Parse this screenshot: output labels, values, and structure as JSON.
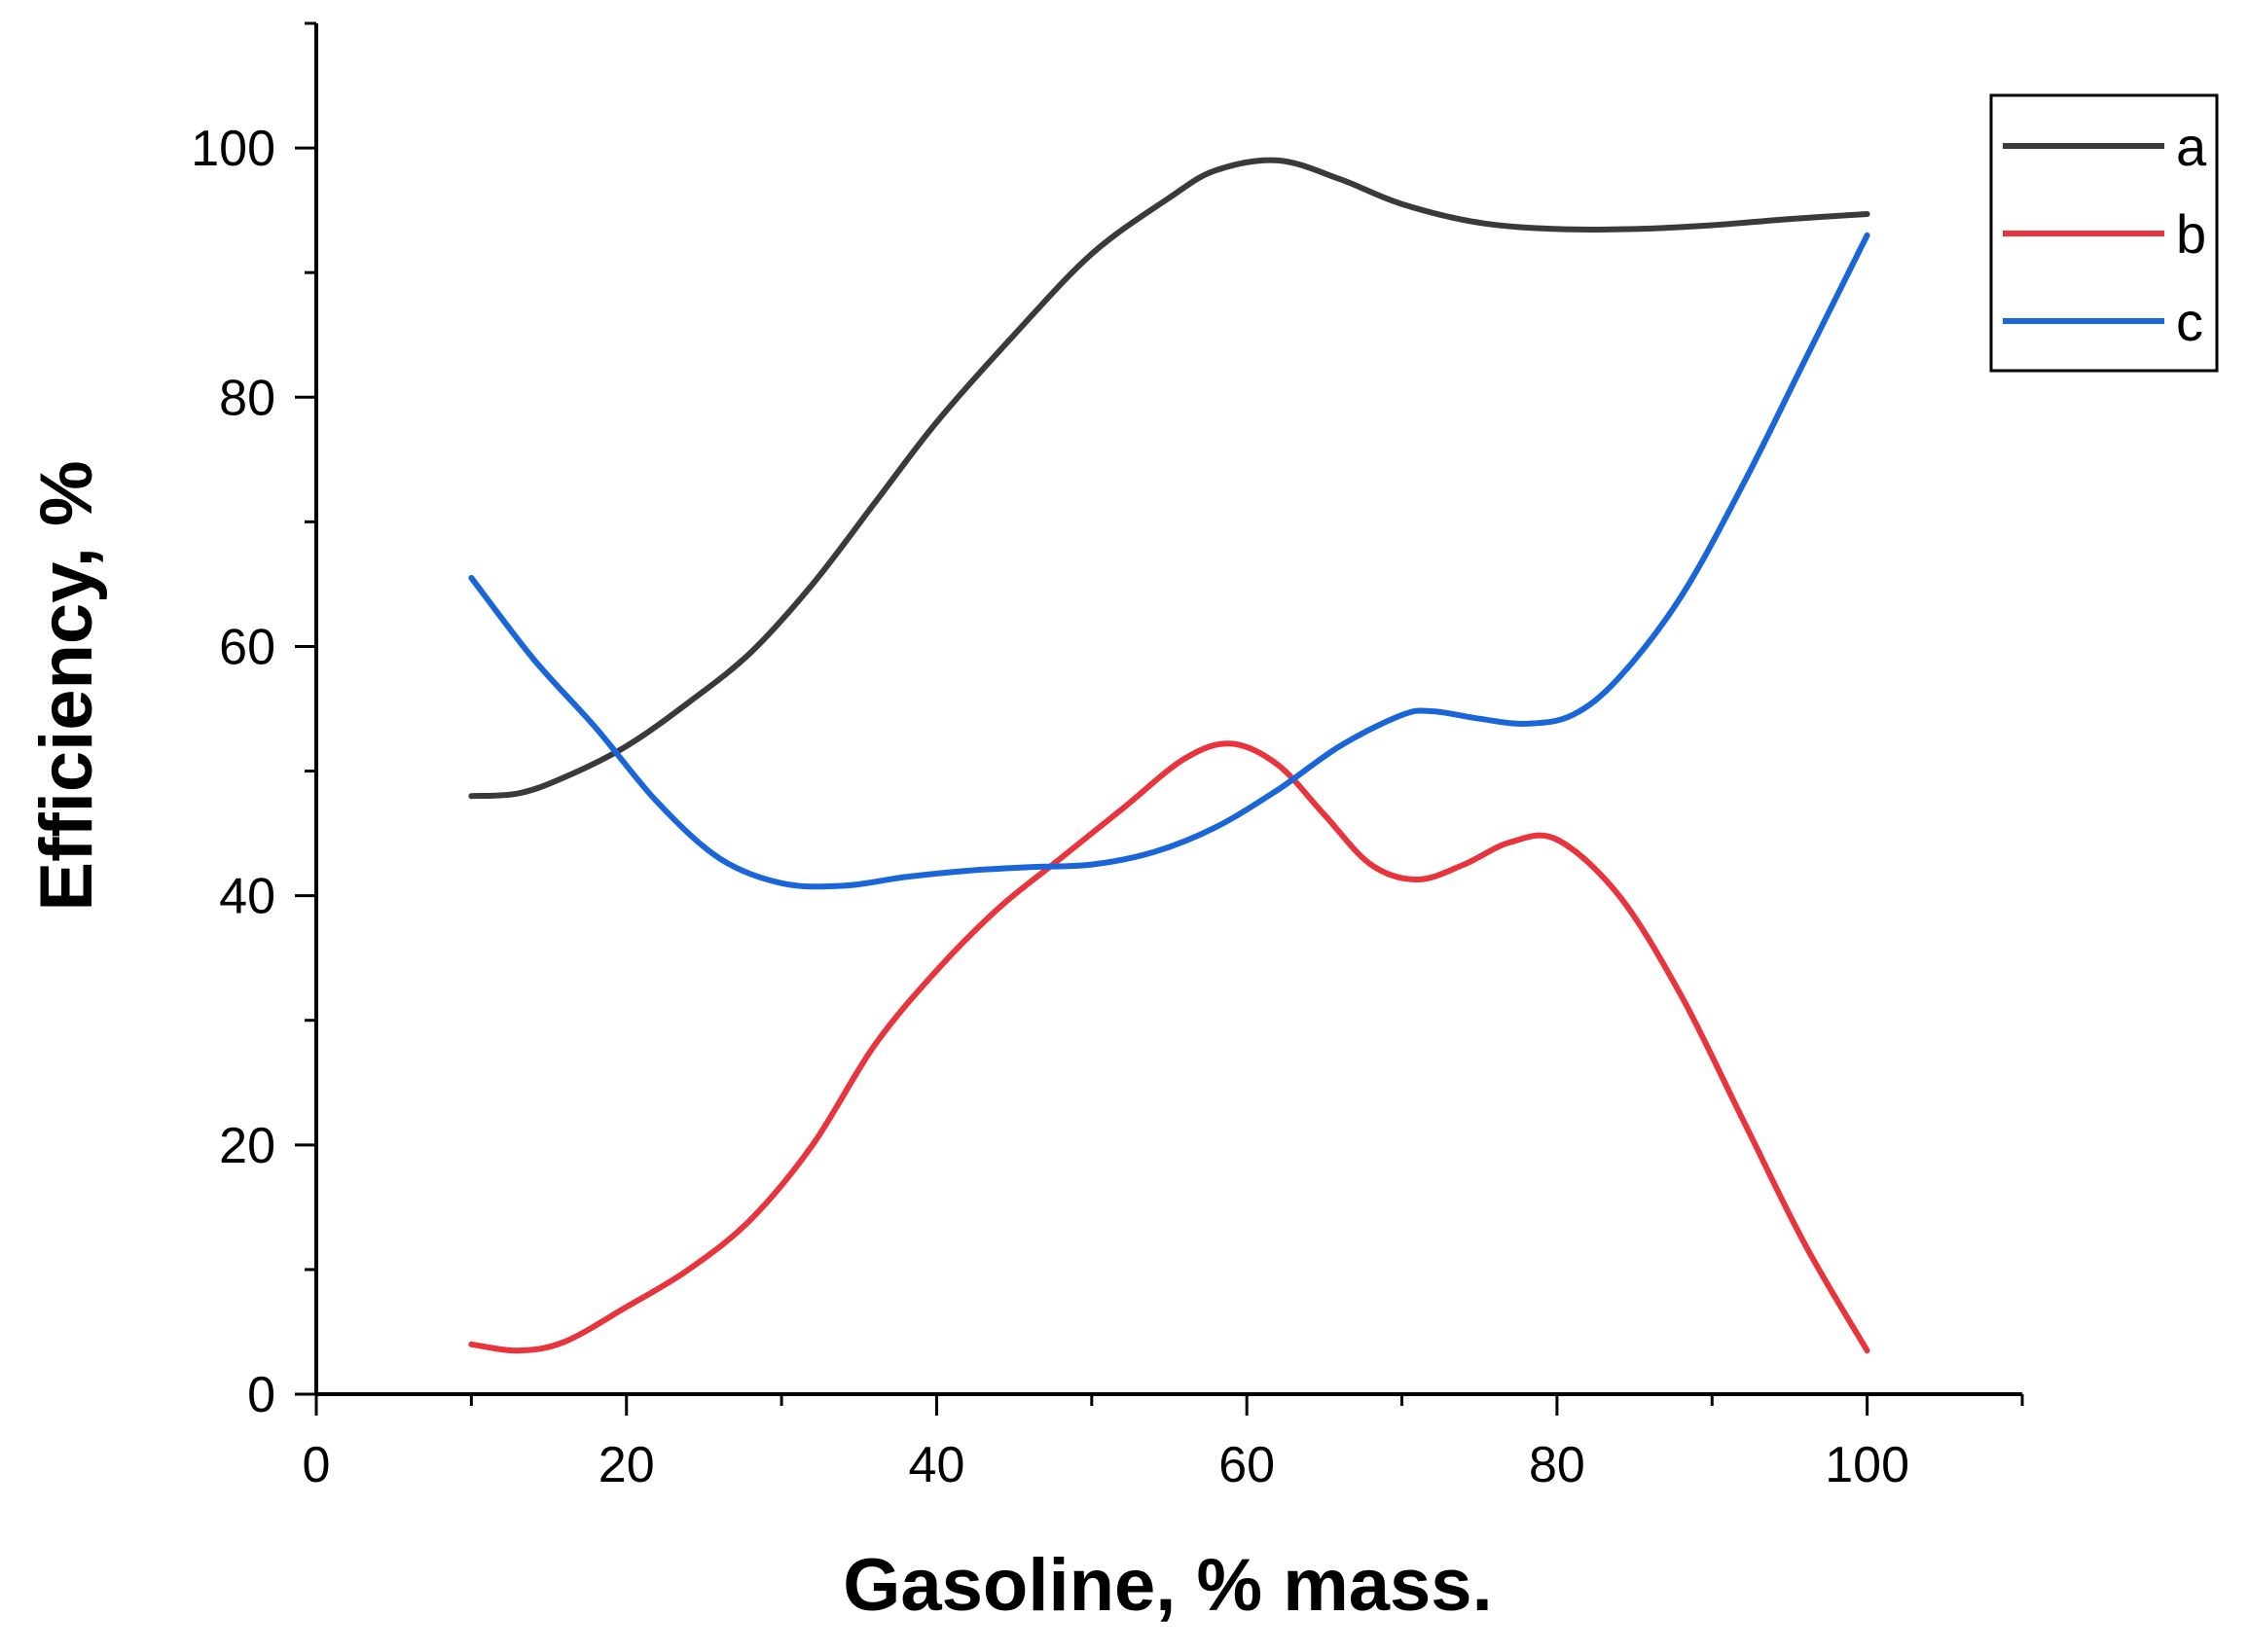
{
  "chart_data": {
    "type": "line",
    "title": "",
    "xlabel": "Gasoline, % mass.",
    "ylabel": "Efficiency, %",
    "xlim": [
      0,
      110
    ],
    "ylim": [
      0,
      110
    ],
    "xticks": [
      0,
      20,
      40,
      60,
      80,
      100
    ],
    "yticks": [
      0,
      20,
      40,
      60,
      80,
      100
    ],
    "x_minor_step": 10,
    "y_minor_step": 10,
    "grid": false,
    "legend": "top-right",
    "series": [
      {
        "name": "a",
        "color": "#3a3a3a",
        "x": [
          10,
          13,
          16,
          20,
          24,
          28,
          32,
          36,
          40,
          45,
          50,
          55,
          58,
          62,
          66,
          70,
          75,
          80,
          85,
          90,
          95,
          100
        ],
        "y": [
          48,
          48.2,
          49.5,
          52,
          55.5,
          59.5,
          65,
          71.5,
          78,
          85,
          91.5,
          96,
          98.2,
          99,
          97.5,
          95.5,
          94,
          93.5,
          93.5,
          93.8,
          94.3,
          94.7
        ]
      },
      {
        "name": "b",
        "color": "#e8343c",
        "x": [
          10,
          13,
          16,
          20,
          24,
          28,
          32,
          36,
          40,
          44,
          48,
          52,
          56,
          59,
          62,
          65,
          68,
          71,
          74,
          77,
          80,
          84,
          88,
          92,
          96,
          100
        ],
        "y": [
          4,
          3.5,
          4.2,
          7,
          10,
          14,
          20,
          28,
          34,
          39,
          43,
          47,
          51,
          52.2,
          50.5,
          46.5,
          42.5,
          41.3,
          42.5,
          44.3,
          44.5,
          40,
          32,
          22,
          12,
          3.5
        ]
      },
      {
        "name": "c",
        "color": "#1a66d8",
        "x": [
          10,
          14,
          18,
          22,
          26,
          30,
          34,
          38,
          42,
          46,
          50,
          54,
          58,
          62,
          66,
          70,
          72,
          75,
          78,
          81,
          84,
          88,
          92,
          96,
          100
        ],
        "y": [
          65.5,
          59,
          53.5,
          47.5,
          43,
          41,
          40.8,
          41.5,
          42,
          42.3,
          42.5,
          43.5,
          45.5,
          48.5,
          52,
          54.5,
          54.8,
          54.2,
          53.8,
          54.5,
          57.5,
          64,
          73,
          83,
          93
        ]
      }
    ]
  }
}
